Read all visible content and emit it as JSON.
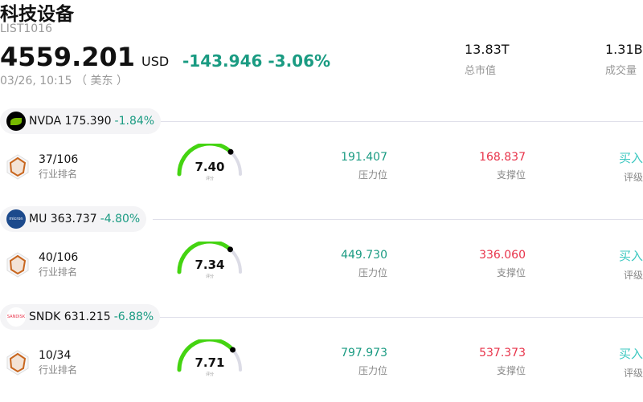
{
  "header": {
    "title": "科技设备",
    "code": "LIST1016",
    "price": "4559.201",
    "currency": "USD",
    "change": "-143.946 -3.06%",
    "time": "03/26, 10:15 （ 美东 ）",
    "market_cap": {
      "value": "13.83T",
      "label": "总市值"
    },
    "volume": {
      "value": "1.31B",
      "label": "成交量"
    }
  },
  "colors": {
    "down": "#1a9b82",
    "support": "#e8334a",
    "buy": "#3cc8c0",
    "gauge": "#44d411"
  },
  "stocks": [
    {
      "ticker": "NVDA",
      "price": "175.390",
      "pct": "-1.84%",
      "logo_icon": "nvidia-logo",
      "rank": "37/106",
      "rank_label": "行业排名",
      "score": "7.40",
      "score_value": 7.4,
      "score_label": "评分",
      "resistance": "191.407",
      "resistance_label": "压力位",
      "support": "168.837",
      "support_label": "支撑位",
      "rating": "买入",
      "rating_label": "评级"
    },
    {
      "ticker": "MU",
      "price": "363.737",
      "pct": "-4.80%",
      "logo_icon": "micron-logo",
      "rank": "40/106",
      "rank_label": "行业排名",
      "score": "7.34",
      "score_value": 7.34,
      "score_label": "评分",
      "resistance": "449.730",
      "resistance_label": "压力位",
      "support": "336.060",
      "support_label": "支撑位",
      "rating": "买入",
      "rating_label": "评级"
    },
    {
      "ticker": "SNDK",
      "price": "631.215",
      "pct": "-6.88%",
      "logo_icon": "sandisk-logo",
      "rank": "10/34",
      "rank_label": "行业排名",
      "score": "7.71",
      "score_value": 7.71,
      "score_label": "评分",
      "resistance": "797.973",
      "resistance_label": "压力位",
      "support": "537.373",
      "support_label": "支撑位",
      "rating": "买入",
      "rating_label": "评级"
    }
  ]
}
